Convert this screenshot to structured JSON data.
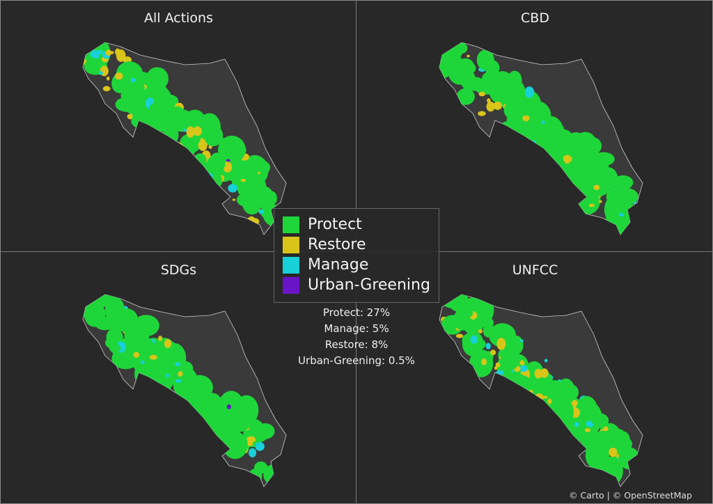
{
  "panels": [
    {
      "title": "All Actions",
      "mix": {
        "protect": 0.6,
        "restore": 0.25,
        "manage": 0.12,
        "urban": 0.03
      }
    },
    {
      "title": "CBD",
      "mix": {
        "protect": 0.65,
        "restore": 0.25,
        "manage": 0.1,
        "urban": 0
      }
    },
    {
      "title": "SDGs",
      "mix": {
        "protect": 0.6,
        "restore": 0.25,
        "manage": 0.12,
        "urban": 0.03
      }
    },
    {
      "title": "UNFCC",
      "mix": {
        "protect": 0.55,
        "restore": 0.33,
        "manage": 0.12,
        "urban": 0
      }
    }
  ],
  "legend": [
    {
      "label": "Protect",
      "color": "#1fd63a"
    },
    {
      "label": "Restore",
      "color": "#d9c41a"
    },
    {
      "label": "Manage",
      "color": "#18d0d8"
    },
    {
      "label": "Urban-Greening",
      "color": "#6a14c8"
    }
  ],
  "stats": [
    "Protect: 27%",
    "Manage: 5%",
    "Restore: 8%",
    "Urban-Greening: 0.5%"
  ],
  "attribution": "© Carto | © OpenStreetMap",
  "colors": {
    "background": "#282828",
    "land": "#3a3a3a",
    "coast": "#cfcfcf"
  }
}
